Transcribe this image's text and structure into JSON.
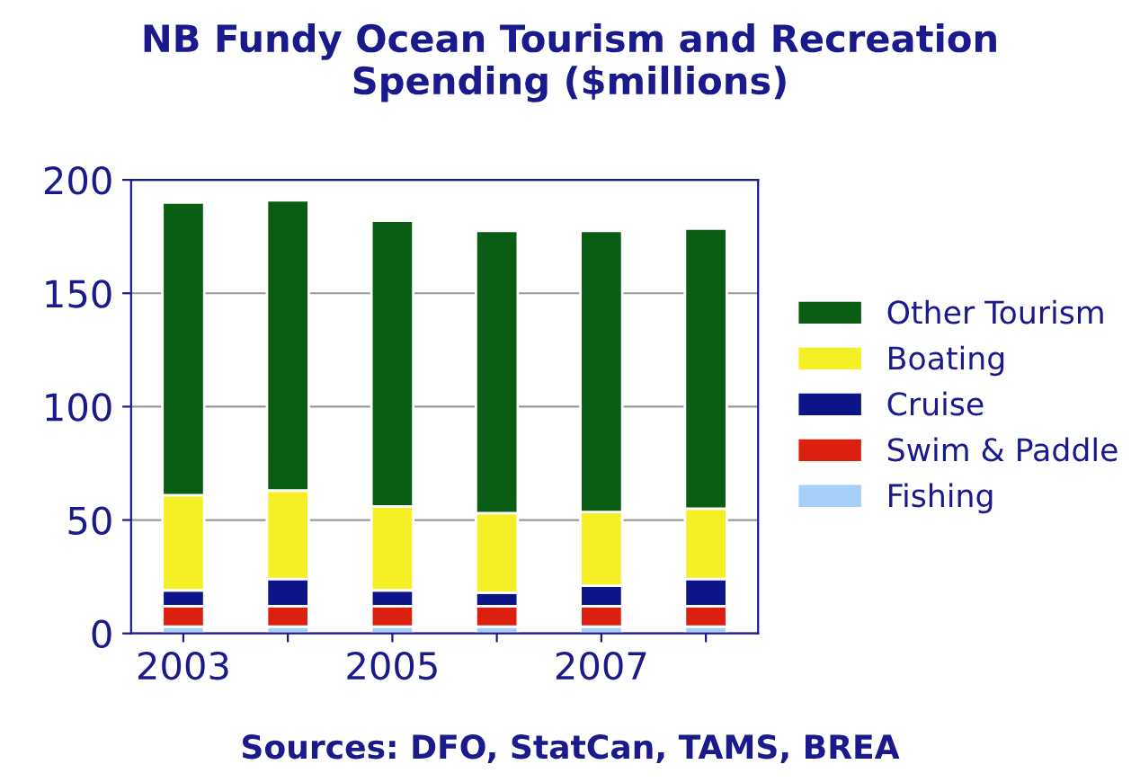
{
  "chart_data": {
    "type": "bar",
    "title": "NB Fundy Ocean Tourism and Recreation\nSpending ($millions)",
    "categories": [
      "2003",
      null,
      "2005",
      null,
      "2007",
      null
    ],
    "stacked": true,
    "series": [
      {
        "name": "Fishing",
        "color": "#a6d0f8",
        "values": [
          3,
          3,
          3,
          3,
          3,
          3
        ]
      },
      {
        "name": "Swim & Paddle",
        "color": "#dc2010",
        "values": [
          9,
          9,
          9,
          9,
          9,
          9
        ]
      },
      {
        "name": "Cruise",
        "color": "#0c1488",
        "values": [
          7,
          12,
          7,
          6,
          9,
          12
        ]
      },
      {
        "name": "Boating",
        "color": "#f5ef25",
        "values": [
          42,
          39,
          37,
          35,
          32.5,
          31
        ]
      },
      {
        "name": "Other Tourism",
        "color": "#0a5e14",
        "values": [
          129,
          128,
          126,
          124.5,
          124,
          123.5
        ]
      }
    ],
    "ylim": [
      0,
      200
    ],
    "yticks": [
      0,
      50,
      100,
      150,
      200
    ],
    "grid": "y",
    "legend": "right",
    "annotations": [
      "Sources: DFO, StatCan, TAMS, BREA"
    ]
  }
}
